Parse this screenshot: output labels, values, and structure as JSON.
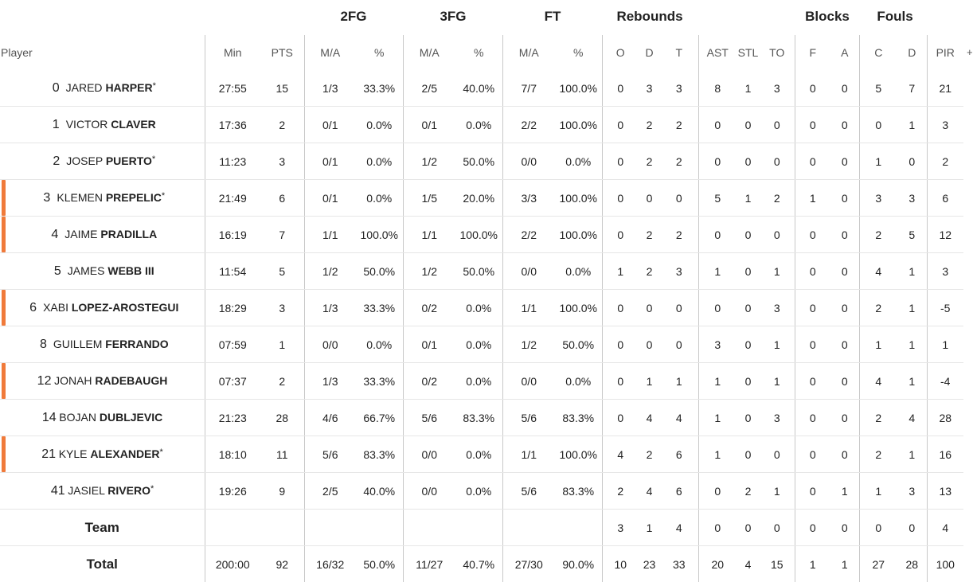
{
  "group_headers": {
    "fg2": "2FG",
    "fg3": "3FG",
    "ft": "FT",
    "rebounds": "Rebounds",
    "blocks": "Blocks",
    "fouls": "Fouls"
  },
  "columns": {
    "player": "Player",
    "min": "Min",
    "pts": "PTS",
    "fg2_ma": "M/A",
    "fg2_pct": "%",
    "fg3_ma": "M/A",
    "fg3_pct": "%",
    "ft_ma": "M/A",
    "ft_pct": "%",
    "reb_o": "O",
    "reb_d": "D",
    "reb_t": "T",
    "ast": "AST",
    "stl": "STL",
    "to": "TO",
    "blk_f": "F",
    "blk_a": "A",
    "foul_c": "C",
    "foul_d": "D",
    "pir": "PIR",
    "extra": "+"
  },
  "players": [
    {
      "number": "0",
      "first": "JARED",
      "last": "HARPER",
      "starter": "*",
      "marker": false,
      "min": "27:55",
      "pts": "15",
      "fg2_ma": "1/3",
      "fg2_pct": "33.3%",
      "fg3_ma": "2/5",
      "fg3_pct": "40.0%",
      "ft_ma": "7/7",
      "ft_pct": "100.0%",
      "reb_o": "0",
      "reb_d": "3",
      "reb_t": "3",
      "ast": "8",
      "stl": "1",
      "to": "3",
      "blk_f": "0",
      "blk_a": "0",
      "foul_c": "5",
      "foul_d": "7",
      "pir": "21"
    },
    {
      "number": "1",
      "first": "VICTOR",
      "last": "CLAVER",
      "starter": "",
      "marker": false,
      "min": "17:36",
      "pts": "2",
      "fg2_ma": "0/1",
      "fg2_pct": "0.0%",
      "fg3_ma": "0/1",
      "fg3_pct": "0.0%",
      "ft_ma": "2/2",
      "ft_pct": "100.0%",
      "reb_o": "0",
      "reb_d": "2",
      "reb_t": "2",
      "ast": "0",
      "stl": "0",
      "to": "0",
      "blk_f": "0",
      "blk_a": "0",
      "foul_c": "0",
      "foul_d": "1",
      "pir": "3"
    },
    {
      "number": "2",
      "first": "JOSEP",
      "last": "PUERTO",
      "starter": "*",
      "marker": false,
      "min": "11:23",
      "pts": "3",
      "fg2_ma": "0/1",
      "fg2_pct": "0.0%",
      "fg3_ma": "1/2",
      "fg3_pct": "50.0%",
      "ft_ma": "0/0",
      "ft_pct": "0.0%",
      "reb_o": "0",
      "reb_d": "2",
      "reb_t": "2",
      "ast": "0",
      "stl": "0",
      "to": "0",
      "blk_f": "0",
      "blk_a": "0",
      "foul_c": "1",
      "foul_d": "0",
      "pir": "2"
    },
    {
      "number": "3",
      "first": "KLEMEN",
      "last": "PREPELIC",
      "starter": "*",
      "marker": true,
      "min": "21:49",
      "pts": "6",
      "fg2_ma": "0/1",
      "fg2_pct": "0.0%",
      "fg3_ma": "1/5",
      "fg3_pct": "20.0%",
      "ft_ma": "3/3",
      "ft_pct": "100.0%",
      "reb_o": "0",
      "reb_d": "0",
      "reb_t": "0",
      "ast": "5",
      "stl": "1",
      "to": "2",
      "blk_f": "1",
      "blk_a": "0",
      "foul_c": "3",
      "foul_d": "3",
      "pir": "6"
    },
    {
      "number": "4",
      "first": "JAIME",
      "last": "PRADILLA",
      "starter": "",
      "marker": true,
      "min": "16:19",
      "pts": "7",
      "fg2_ma": "1/1",
      "fg2_pct": "100.0%",
      "fg3_ma": "1/1",
      "fg3_pct": "100.0%",
      "ft_ma": "2/2",
      "ft_pct": "100.0%",
      "reb_o": "0",
      "reb_d": "2",
      "reb_t": "2",
      "ast": "0",
      "stl": "0",
      "to": "0",
      "blk_f": "0",
      "blk_a": "0",
      "foul_c": "2",
      "foul_d": "5",
      "pir": "12"
    },
    {
      "number": "5",
      "first": "JAMES",
      "last": "WEBB III",
      "starter": "",
      "marker": false,
      "min": "11:54",
      "pts": "5",
      "fg2_ma": "1/2",
      "fg2_pct": "50.0%",
      "fg3_ma": "1/2",
      "fg3_pct": "50.0%",
      "ft_ma": "0/0",
      "ft_pct": "0.0%",
      "reb_o": "1",
      "reb_d": "2",
      "reb_t": "3",
      "ast": "1",
      "stl": "0",
      "to": "1",
      "blk_f": "0",
      "blk_a": "0",
      "foul_c": "4",
      "foul_d": "1",
      "pir": "3"
    },
    {
      "number": "6",
      "first": "XABI",
      "last": "LOPEZ-AROSTEGUI",
      "starter": "",
      "marker": true,
      "min": "18:29",
      "pts": "3",
      "fg2_ma": "1/3",
      "fg2_pct": "33.3%",
      "fg3_ma": "0/2",
      "fg3_pct": "0.0%",
      "ft_ma": "1/1",
      "ft_pct": "100.0%",
      "reb_o": "0",
      "reb_d": "0",
      "reb_t": "0",
      "ast": "0",
      "stl": "0",
      "to": "3",
      "blk_f": "0",
      "blk_a": "0",
      "foul_c": "2",
      "foul_d": "1",
      "pir": "-5"
    },
    {
      "number": "8",
      "first": "GUILLEM",
      "last": "FERRANDO",
      "starter": "",
      "marker": false,
      "min": "07:59",
      "pts": "1",
      "fg2_ma": "0/0",
      "fg2_pct": "0.0%",
      "fg3_ma": "0/1",
      "fg3_pct": "0.0%",
      "ft_ma": "1/2",
      "ft_pct": "50.0%",
      "reb_o": "0",
      "reb_d": "0",
      "reb_t": "0",
      "ast": "3",
      "stl": "0",
      "to": "1",
      "blk_f": "0",
      "blk_a": "0",
      "foul_c": "1",
      "foul_d": "1",
      "pir": "1"
    },
    {
      "number": "12",
      "first": "JONAH",
      "last": "RADEBAUGH",
      "starter": "",
      "marker": true,
      "min": "07:37",
      "pts": "2",
      "fg2_ma": "1/3",
      "fg2_pct": "33.3%",
      "fg3_ma": "0/2",
      "fg3_pct": "0.0%",
      "ft_ma": "0/0",
      "ft_pct": "0.0%",
      "reb_o": "0",
      "reb_d": "1",
      "reb_t": "1",
      "ast": "1",
      "stl": "0",
      "to": "1",
      "blk_f": "0",
      "blk_a": "0",
      "foul_c": "4",
      "foul_d": "1",
      "pir": "-4"
    },
    {
      "number": "14",
      "first": "BOJAN",
      "last": "DUBLJEVIC",
      "starter": "",
      "marker": false,
      "min": "21:23",
      "pts": "28",
      "fg2_ma": "4/6",
      "fg2_pct": "66.7%",
      "fg3_ma": "5/6",
      "fg3_pct": "83.3%",
      "ft_ma": "5/6",
      "ft_pct": "83.3%",
      "reb_o": "0",
      "reb_d": "4",
      "reb_t": "4",
      "ast": "1",
      "stl": "0",
      "to": "3",
      "blk_f": "0",
      "blk_a": "0",
      "foul_c": "2",
      "foul_d": "4",
      "pir": "28"
    },
    {
      "number": "21",
      "first": "KYLE",
      "last": "ALEXANDER",
      "starter": "*",
      "marker": true,
      "min": "18:10",
      "pts": "11",
      "fg2_ma": "5/6",
      "fg2_pct": "83.3%",
      "fg3_ma": "0/0",
      "fg3_pct": "0.0%",
      "ft_ma": "1/1",
      "ft_pct": "100.0%",
      "reb_o": "4",
      "reb_d": "2",
      "reb_t": "6",
      "ast": "1",
      "stl": "0",
      "to": "0",
      "blk_f": "0",
      "blk_a": "0",
      "foul_c": "2",
      "foul_d": "1",
      "pir": "16"
    },
    {
      "number": "41",
      "first": "JASIEL",
      "last": "RIVERO",
      "starter": "*",
      "marker": false,
      "min": "19:26",
      "pts": "9",
      "fg2_ma": "2/5",
      "fg2_pct": "40.0%",
      "fg3_ma": "0/0",
      "fg3_pct": "0.0%",
      "ft_ma": "5/6",
      "ft_pct": "83.3%",
      "reb_o": "2",
      "reb_d": "4",
      "reb_t": "6",
      "ast": "0",
      "stl": "2",
      "to": "1",
      "blk_f": "0",
      "blk_a": "1",
      "foul_c": "1",
      "foul_d": "3",
      "pir": "13"
    }
  ],
  "team": {
    "label": "Team",
    "min": "",
    "pts": "",
    "fg2_ma": "",
    "fg2_pct": "",
    "fg3_ma": "",
    "fg3_pct": "",
    "ft_ma": "",
    "ft_pct": "",
    "reb_o": "3",
    "reb_d": "1",
    "reb_t": "4",
    "ast": "0",
    "stl": "0",
    "to": "0",
    "blk_f": "0",
    "blk_a": "0",
    "foul_c": "0",
    "foul_d": "0",
    "pir": "4"
  },
  "total": {
    "label": "Total",
    "min": "200:00",
    "pts": "92",
    "fg2_ma": "16/32",
    "fg2_pct": "50.0%",
    "fg3_ma": "11/27",
    "fg3_pct": "40.7%",
    "ft_ma": "27/30",
    "ft_pct": "90.0%",
    "reb_o": "10",
    "reb_d": "23",
    "reb_t": "33",
    "ast": "20",
    "stl": "4",
    "to": "15",
    "blk_f": "1",
    "blk_a": "1",
    "foul_c": "27",
    "foul_d": "28",
    "pir": "100"
  },
  "colors": {
    "marker": "#f07a3a",
    "divider": "#c8c8c8",
    "row_line": "#e6e6e6"
  }
}
